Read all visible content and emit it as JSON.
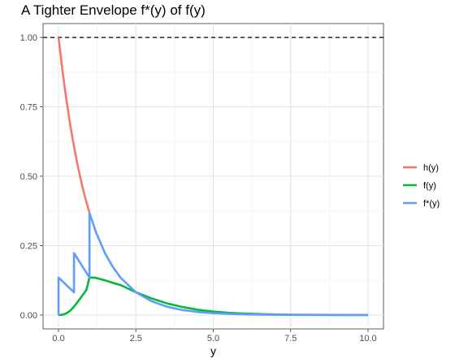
{
  "chart_data": {
    "type": "line",
    "title": "A Tighter Envelope f*(y) of f(y)",
    "xlabel": "y",
    "ylabel": "",
    "xlim": [
      -0.5,
      10.5
    ],
    "ylim": [
      -0.05,
      1.05
    ],
    "x_ticks": [
      0,
      2.5,
      5,
      7.5,
      10
    ],
    "x_tick_labels": [
      "0.0",
      "2.5",
      "5.0",
      "7.5",
      "10.0"
    ],
    "y_ticks": [
      0,
      0.25,
      0.5,
      0.75,
      1
    ],
    "y_tick_labels": [
      "0.00",
      "0.25",
      "0.50",
      "0.75",
      "1.00"
    ],
    "grid": true,
    "legend_position": "right",
    "reference_line": {
      "y": 1.0,
      "style": "dashed",
      "color": "#000000"
    },
    "series": [
      {
        "name": "h(y)",
        "color": "#F8766D",
        "x": [
          0,
          0.1,
          0.2,
          0.3,
          0.4,
          0.5,
          0.6,
          0.7,
          0.8,
          0.9,
          1.0
        ],
        "y": [
          1.0,
          0.905,
          0.819,
          0.741,
          0.67,
          0.607,
          0.549,
          0.497,
          0.449,
          0.407,
          0.368
        ]
      },
      {
        "name": "f(y)",
        "color": "#00BA38",
        "x": [
          0,
          0.1,
          0.2,
          0.3,
          0.4,
          0.5,
          0.6,
          0.7,
          0.8,
          0.9,
          1.0,
          1.2,
          1.5,
          1.75,
          2.0,
          2.5,
          3.0,
          3.5,
          4.0,
          4.5,
          5.0,
          5.5,
          6.0,
          6.5,
          7.0,
          7.5,
          8.0,
          9.0,
          10.0
        ],
        "y": [
          0,
          0.0005,
          0.0033,
          0.0091,
          0.0179,
          0.0303,
          0.0445,
          0.0596,
          0.075,
          0.09,
          0.1353,
          0.134,
          0.125,
          0.116,
          0.108,
          0.082,
          0.06,
          0.042,
          0.029,
          0.019,
          0.0125,
          0.008,
          0.005,
          0.0031,
          0.0019,
          0.0012,
          0.0007,
          0.0003,
          0.0001
        ]
      },
      {
        "name": "f*(y)",
        "color": "#619CFF",
        "x": [
          0,
          0,
          0.5,
          0.5,
          1.0,
          1.0,
          1.2,
          1.5,
          1.75,
          2.0,
          2.5,
          3.0,
          3.5,
          4.0,
          4.5,
          5.0,
          5.5,
          6.0,
          6.5,
          7.0,
          7.5,
          8.0,
          9.0,
          10.0
        ],
        "y": [
          0,
          0.135,
          0.082,
          0.223,
          0.135,
          0.368,
          0.301,
          0.223,
          0.174,
          0.135,
          0.082,
          0.05,
          0.03,
          0.018,
          0.011,
          0.0067,
          0.0041,
          0.0025,
          0.0015,
          0.0009,
          0.00055,
          0.00034,
          0.00012,
          5e-05
        ]
      }
    ]
  }
}
